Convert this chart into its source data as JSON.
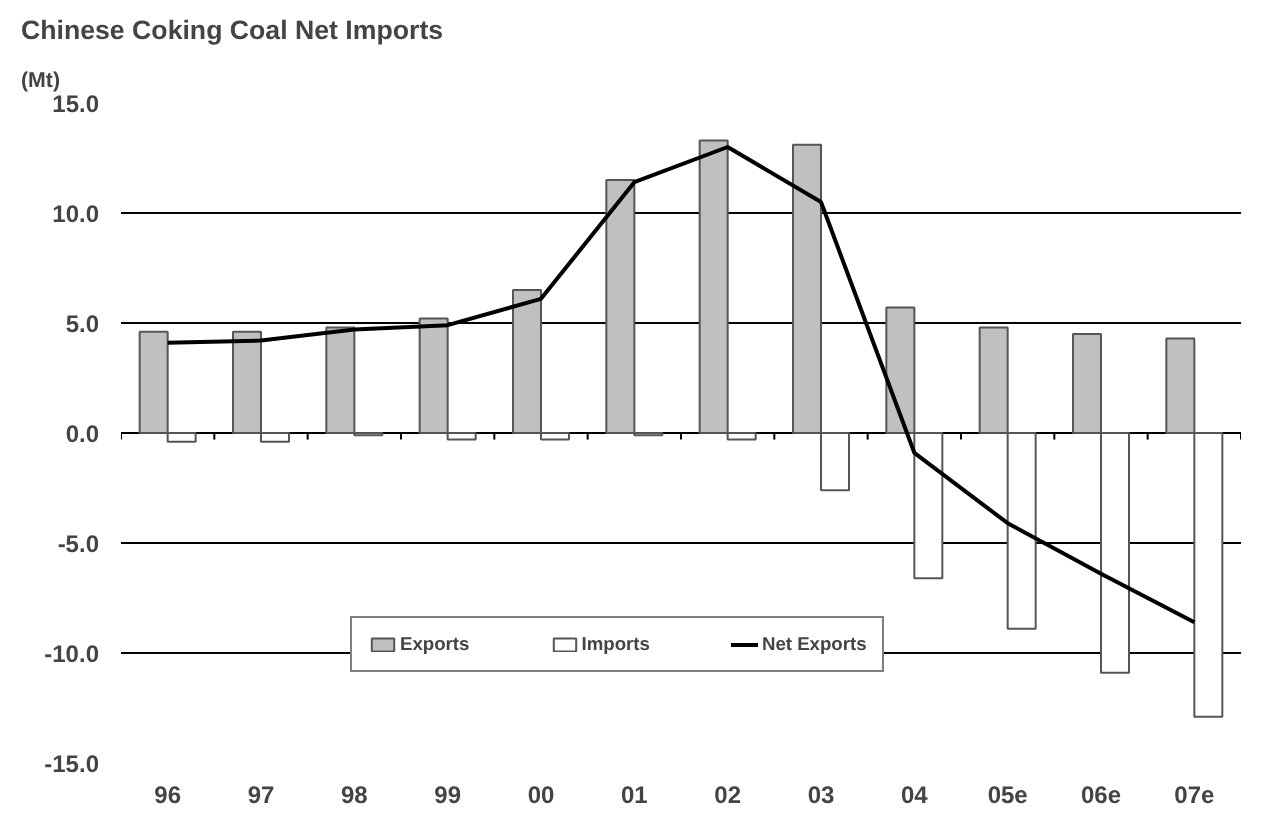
{
  "chart_data": {
    "type": "bar",
    "title": "Chinese Coking Coal Net Imports",
    "ylabel": "(Mt)",
    "categories": [
      "96",
      "97",
      "98",
      "99",
      "00",
      "01",
      "02",
      "03",
      "04",
      "05e",
      "06e",
      "07e"
    ],
    "series": [
      {
        "name": "Exports",
        "color": "#c0c0c0",
        "values": [
          4.6,
          4.6,
          4.8,
          5.2,
          6.5,
          11.5,
          13.3,
          13.1,
          5.7,
          4.8,
          4.5,
          4.3
        ]
      },
      {
        "name": "Imports",
        "color": "#ffffff",
        "values": [
          -0.4,
          -0.4,
          -0.1,
          -0.3,
          -0.3,
          -0.1,
          -0.3,
          -2.6,
          -6.6,
          -8.9,
          -10.9,
          -12.9
        ]
      },
      {
        "name": "Net Exports",
        "type": "line",
        "color": "#000000",
        "values": [
          4.1,
          4.2,
          4.7,
          4.9,
          6.1,
          11.4,
          13.0,
          10.5,
          -0.9,
          -4.1,
          -6.4,
          -8.6
        ]
      }
    ],
    "ylim": [
      -15,
      15
    ],
    "yticks": [
      {
        "value": -15,
        "label": "-15.0"
      },
      {
        "value": -10,
        "label": "-10.0"
      },
      {
        "value": -5,
        "label": "-5.0"
      },
      {
        "value": 0,
        "label": "0.0"
      },
      {
        "value": 5,
        "label": "5.0"
      },
      {
        "value": 10,
        "label": "10.0"
      },
      {
        "value": 15,
        "label": "15.0"
      }
    ],
    "grid": "y",
    "legend": "bottom"
  }
}
